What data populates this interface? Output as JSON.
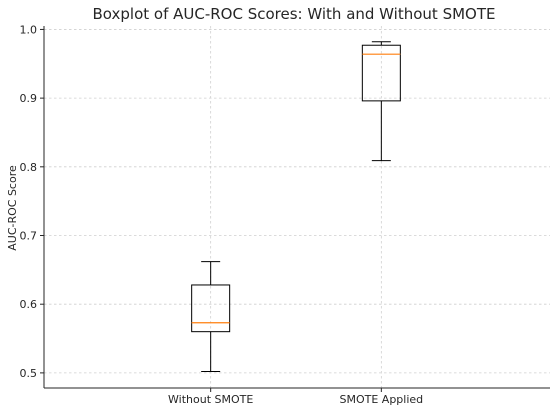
{
  "chart_data": {
    "type": "boxplot",
    "title": "Boxplot of AUC-ROC Scores: With and Without SMOTE",
    "xlabel": "",
    "ylabel": "AUC-ROC Score",
    "ylim": [
      0.478,
      1.005
    ],
    "yticks": [
      0.5,
      0.6,
      0.7,
      0.8,
      0.9,
      1.0
    ],
    "ytick_labels": [
      "0.5",
      "0.6",
      "0.7",
      "0.8",
      "0.9",
      "1.0"
    ],
    "grid": true,
    "categories": [
      "Without SMOTE",
      "SMOTE Applied"
    ],
    "boxes": [
      {
        "label": "Without SMOTE",
        "whisker_low": 0.502,
        "q1": 0.56,
        "median": 0.573,
        "q3": 0.628,
        "whisker_high": 0.662
      },
      {
        "label": "SMOTE Applied",
        "whisker_low": 0.809,
        "q1": 0.896,
        "median": 0.964,
        "q3": 0.977,
        "whisker_high": 0.982
      }
    ],
    "box_color": "#000000",
    "median_color": "#ff7f0e"
  }
}
